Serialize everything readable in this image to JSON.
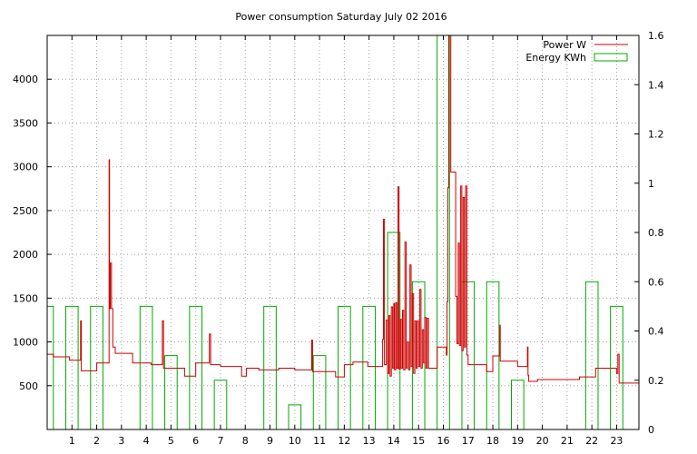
{
  "chart_data": {
    "type": "mixed-bar-line",
    "title": "Power consumption Saturday July 02 2016",
    "xlabel": "",
    "ylabel": "",
    "y2label": "",
    "xlim": [
      0,
      23.9
    ],
    "ylim": [
      0,
      4500
    ],
    "y2lim": [
      0,
      1.6
    ],
    "x_ticks": [
      1,
      2,
      3,
      4,
      5,
      6,
      7,
      8,
      9,
      10,
      11,
      12,
      13,
      14,
      15,
      16,
      17,
      18,
      19,
      20,
      21,
      22,
      23
    ],
    "y_ticks": [
      500,
      1000,
      1500,
      2000,
      2500,
      3000,
      3500,
      4000
    ],
    "y2_ticks": [
      0,
      0.2,
      0.4,
      0.6,
      0.8,
      1,
      1.2,
      1.4,
      1.6
    ],
    "y2_tick_labels": [
      "0",
      "0.2",
      "0.4",
      "0.6",
      "0.8",
      "1",
      "1.2",
      "1.4",
      "1.6"
    ],
    "grid": true,
    "legend_position": "top-right",
    "legend": [
      "Power W",
      "Energy KWh"
    ],
    "colors": {
      "power": "#cc0000",
      "energy": "#00aa00",
      "grid": "#a0a0a0",
      "axis": "#000000"
    },
    "series": [
      {
        "name": "Power W",
        "type": "line",
        "axis": "left",
        "points": [
          [
            0.0,
            860
          ],
          [
            0.25,
            830
          ],
          [
            0.9,
            790
          ],
          [
            1.3,
            790
          ],
          [
            1.35,
            1240
          ],
          [
            1.38,
            670
          ],
          [
            1.95,
            670
          ],
          [
            2.0,
            760
          ],
          [
            2.45,
            760
          ],
          [
            2.5,
            3080
          ],
          [
            2.52,
            1380
          ],
          [
            2.55,
            1900
          ],
          [
            2.6,
            1380
          ],
          [
            2.65,
            940
          ],
          [
            2.75,
            870
          ],
          [
            3.4,
            870
          ],
          [
            3.45,
            760
          ],
          [
            4.1,
            760
          ],
          [
            4.2,
            740
          ],
          [
            4.6,
            740
          ],
          [
            4.65,
            1240
          ],
          [
            4.7,
            700
          ],
          [
            5.5,
            700
          ],
          [
            5.55,
            610
          ],
          [
            5.9,
            610
          ],
          [
            6.0,
            760
          ],
          [
            6.5,
            760
          ],
          [
            6.55,
            1090
          ],
          [
            6.6,
            740
          ],
          [
            6.95,
            740
          ],
          [
            7.0,
            720
          ],
          [
            7.8,
            720
          ],
          [
            7.85,
            610
          ],
          [
            8.0,
            610
          ],
          [
            8.05,
            700
          ],
          [
            8.5,
            700
          ],
          [
            8.55,
            680
          ],
          [
            9.3,
            680
          ],
          [
            9.35,
            700
          ],
          [
            9.95,
            700
          ],
          [
            10.0,
            680
          ],
          [
            10.65,
            680
          ],
          [
            10.68,
            1020
          ],
          [
            10.72,
            660
          ],
          [
            11.6,
            660
          ],
          [
            11.65,
            600
          ],
          [
            11.95,
            600
          ],
          [
            12.0,
            740
          ],
          [
            12.3,
            740
          ],
          [
            12.35,
            770
          ],
          [
            12.9,
            770
          ],
          [
            12.95,
            720
          ],
          [
            13.5,
            720
          ],
          [
            13.55,
            1030
          ],
          [
            13.58,
            2400
          ],
          [
            13.62,
            740
          ],
          [
            13.7,
            1250
          ],
          [
            13.75,
            640
          ],
          [
            13.8,
            1300
          ],
          [
            13.85,
            610
          ],
          [
            13.9,
            1400
          ],
          [
            13.95,
            700
          ],
          [
            14.0,
            1440
          ],
          [
            14.03,
            680
          ],
          [
            14.08,
            1450
          ],
          [
            14.12,
            700
          ],
          [
            14.17,
            2770
          ],
          [
            14.21,
            690
          ],
          [
            14.26,
            1260
          ],
          [
            14.3,
            700
          ],
          [
            14.35,
            1360
          ],
          [
            14.4,
            680
          ],
          [
            14.45,
            2140
          ],
          [
            14.5,
            700
          ],
          [
            14.55,
            1000
          ],
          [
            14.6,
            680
          ],
          [
            14.65,
            1880
          ],
          [
            14.7,
            720
          ],
          [
            14.75,
            1550
          ],
          [
            14.8,
            640
          ],
          [
            14.85,
            1240
          ],
          [
            14.9,
            700
          ],
          [
            14.95,
            1240
          ],
          [
            15.0,
            720
          ],
          [
            15.05,
            1600
          ],
          [
            15.1,
            700
          ],
          [
            15.15,
            1140
          ],
          [
            15.2,
            760
          ],
          [
            15.25,
            1280
          ],
          [
            15.3,
            700
          ],
          [
            15.35,
            1270
          ],
          [
            15.4,
            700
          ],
          [
            15.7,
            700
          ],
          [
            15.75,
            940
          ],
          [
            16.1,
            940
          ],
          [
            16.12,
            850
          ],
          [
            16.15,
            1460
          ],
          [
            16.18,
            2760
          ],
          [
            16.22,
            4500
          ],
          [
            16.28,
            4500
          ],
          [
            16.3,
            2940
          ],
          [
            16.48,
            2940
          ],
          [
            16.5,
            1520
          ],
          [
            16.55,
            980
          ],
          [
            16.6,
            2130
          ],
          [
            16.65,
            960
          ],
          [
            16.7,
            2780
          ],
          [
            16.75,
            900
          ],
          [
            16.8,
            2650
          ],
          [
            16.85,
            940
          ],
          [
            16.9,
            2780
          ],
          [
            16.95,
            850
          ],
          [
            17.0,
            740
          ],
          [
            17.7,
            740
          ],
          [
            17.75,
            660
          ],
          [
            17.95,
            660
          ],
          [
            18.0,
            840
          ],
          [
            18.25,
            840
          ],
          [
            18.28,
            1190
          ],
          [
            18.3,
            780
          ],
          [
            18.95,
            780
          ],
          [
            19.0,
            720
          ],
          [
            19.35,
            720
          ],
          [
            19.4,
            940
          ],
          [
            19.42,
            620
          ],
          [
            19.45,
            550
          ],
          [
            19.75,
            550
          ],
          [
            19.8,
            570
          ],
          [
            21.45,
            570
          ],
          [
            21.5,
            600
          ],
          [
            22.1,
            600
          ],
          [
            22.15,
            700
          ],
          [
            22.95,
            700
          ],
          [
            23.0,
            640
          ],
          [
            23.05,
            860
          ],
          [
            23.1,
            530
          ],
          [
            23.9,
            530
          ]
        ]
      },
      {
        "name": "Energy KWh",
        "type": "bar",
        "axis": "right",
        "bar_width": 0.5,
        "centers": [
          0.0,
          1.0,
          2.0,
          4.0,
          5.0,
          6.0,
          7.0,
          9.0,
          10.0,
          11.0,
          12.0,
          13.0,
          14.0,
          15.0,
          16.0,
          17.0,
          18.0,
          19.0,
          22.0,
          23.0
        ],
        "values": [
          0.5,
          0.5,
          0.5,
          0.5,
          0.3,
          0.5,
          0.2,
          0.5,
          0.1,
          0.3,
          0.5,
          0.5,
          0.8,
          0.6,
          1.6,
          0.6,
          0.6,
          0.2,
          0.6,
          0.5
        ]
      }
    ]
  }
}
